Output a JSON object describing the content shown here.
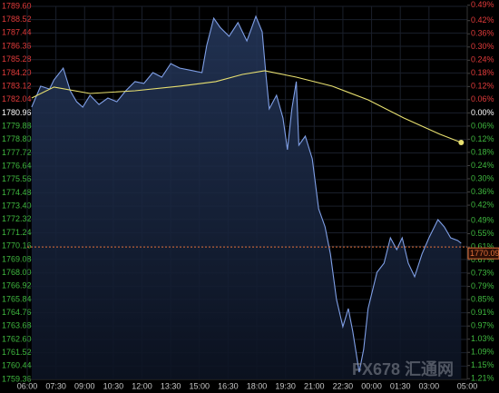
{
  "chart_data": {
    "type": "line",
    "xticks": [
      {
        "value": 0,
        "label": "06:00"
      },
      {
        "value": 90,
        "label": "07:30"
      },
      {
        "value": 180,
        "label": "09:00"
      },
      {
        "value": 270,
        "label": "10:30"
      },
      {
        "value": 360,
        "label": "12:00"
      },
      {
        "value": 450,
        "label": "13:30"
      },
      {
        "value": 540,
        "label": "15:00"
      },
      {
        "value": 630,
        "label": "16:30"
      },
      {
        "value": 720,
        "label": "18:00"
      },
      {
        "value": 810,
        "label": "19:30"
      },
      {
        "value": 900,
        "label": "21:00"
      },
      {
        "value": 990,
        "label": "22:30"
      },
      {
        "value": 1080,
        "label": "00:00"
      },
      {
        "value": 1170,
        "label": "01:30"
      },
      {
        "value": 1260,
        "label": "03:00"
      },
      {
        "value": 1380,
        "label": "05:00"
      }
    ],
    "xlim": [
      0,
      1380
    ],
    "ylim": [
      1759.36,
      1789.6
    ],
    "yticks": [
      {
        "value": 1789.6,
        "label": "1789.60"
      },
      1788.52,
      1787.44,
      1786.36,
      1785.28,
      {
        "value": 1784.2,
        "label": "1784.20"
      },
      1783.12,
      1782.04,
      1780.96,
      1779.88,
      {
        "value": 1778.8,
        "label": "1778.80"
      },
      1777.72,
      1776.64,
      1775.56,
      1774.48,
      {
        "value": 1773.4,
        "label": "1773.40"
      },
      1772.32,
      1771.24,
      1770.16,
      1769.08,
      {
        "value": 1768,
        "label": "1768.00"
      },
      1766.92,
      1765.84,
      1764.76,
      1763.68,
      {
        "value": 1762.6,
        "label": "1762.60"
      },
      1761.52,
      1760.44,
      1759.36
    ],
    "y2lim": [
      -1.213,
      0.485
    ],
    "y2ticks": [
      {
        "value": 0.49,
        "label": "0.49%"
      },
      {
        "value": 0.42,
        "label": "0.42%"
      },
      {
        "value": 0.36,
        "label": "0.36%"
      },
      {
        "value": 0.3,
        "label": "0.30%"
      },
      {
        "value": 0.24,
        "label": "0.24%"
      },
      {
        "value": 0.18,
        "label": "0.18%"
      },
      {
        "value": 0.12,
        "label": "0.12%"
      },
      {
        "value": 0.06,
        "label": "0.06%"
      },
      {
        "value": 0,
        "label": "0.00%"
      },
      {
        "value": -0.06,
        "label": "0.06%"
      },
      {
        "value": -0.12,
        "label": "0.12%"
      },
      {
        "value": -0.18,
        "label": "0.18%"
      },
      {
        "value": -0.24,
        "label": "0.24%"
      },
      {
        "value": -0.3,
        "label": "0.30%"
      },
      {
        "value": -0.36,
        "label": "0.36%"
      },
      {
        "value": -0.42,
        "label": "0.42%"
      },
      {
        "value": -0.49,
        "label": "0.49%"
      },
      {
        "value": -0.55,
        "label": "0.55%"
      },
      {
        "value": -0.61,
        "label": "0.61%"
      },
      {
        "value": -0.67,
        "label": "0.67%"
      },
      {
        "value": -0.73,
        "label": "0.73%"
      },
      {
        "value": -0.79,
        "label": "0.79%"
      },
      {
        "value": -0.85,
        "label": "0.85%"
      },
      {
        "value": -0.91,
        "label": "0.91%"
      },
      {
        "value": -0.97,
        "label": "0.97%"
      },
      {
        "value": -1.03,
        "label": "1.03%"
      },
      {
        "value": -1.09,
        "label": "1.09%"
      },
      {
        "value": -1.15,
        "label": "1.15%"
      },
      {
        "value": -1.21,
        "label": "1.21%"
      }
    ],
    "up_color": "#e23b3b",
    "down_color": "#3fb83f",
    "flat_color": "#ffffff",
    "grid": true,
    "series": [
      {
        "color": "#7f9fe6",
        "x": [
          14,
          42,
          70,
          84,
          113,
          135,
          155,
          174,
          197,
          225,
          253,
          281,
          309,
          338,
          366,
          394,
          422,
          450,
          478,
          520,
          548,
          563,
          585,
          605,
          633,
          661,
          689,
          717,
          737,
          748,
          759,
          782,
          802,
          816,
          830,
          844,
          852,
          872,
          894,
          914,
          934,
          951,
          970,
          990,
          1007,
          1021,
          1041,
          1055,
          1069,
          1083,
          1097,
          1119,
          1139,
          1159,
          1176,
          1195,
          1215,
          1238,
          1260,
          1288,
          1308,
          1328,
          1350,
          1361
        ],
        "values": [
          1781.43,
          1783.13,
          1782.9,
          1783.64,
          1784.6,
          1782.76,
          1781.87,
          1781.43,
          1782.39,
          1781.65,
          1782.17,
          1781.87,
          1782.76,
          1783.5,
          1783.35,
          1784.23,
          1783.86,
          1784.96,
          1784.6,
          1784.38,
          1784.23,
          1786.44,
          1788.64,
          1787.9,
          1787.17,
          1788.28,
          1786.8,
          1788.79,
          1787.54,
          1784.23,
          1781.29,
          1782.39,
          1780.55,
          1777.98,
          1781.29,
          1783.5,
          1778.34,
          1779.08,
          1777.24,
          1773.19,
          1771.72,
          1769.52,
          1765.84,
          1763.63,
          1765.1,
          1763.26,
          1759.95,
          1761.79,
          1765.1,
          1766.57,
          1768.04,
          1768.78,
          1770.84,
          1769.88,
          1770.84,
          1768.78,
          1767.68,
          1769.52,
          1770.84,
          1772.31,
          1771.72,
          1770.84,
          1770.62,
          1770.4
        ]
      },
      {
        "color": "#e8e070",
        "x": [
          14,
          84,
          197,
          338,
          478,
          591,
          675,
          745,
          844,
          956,
          1069,
          1181,
          1294,
          1361
        ],
        "values": [
          1782.17,
          1783.06,
          1782.54,
          1782.76,
          1783.13,
          1783.5,
          1784.08,
          1784.38,
          1783.86,
          1783.13,
          1782.02,
          1780.55,
          1779.23,
          1778.56
        ]
      }
    ],
    "last_price": 1770.09,
    "last_price_color": "#e0703a",
    "watermark": "FX678 汇通网"
  }
}
